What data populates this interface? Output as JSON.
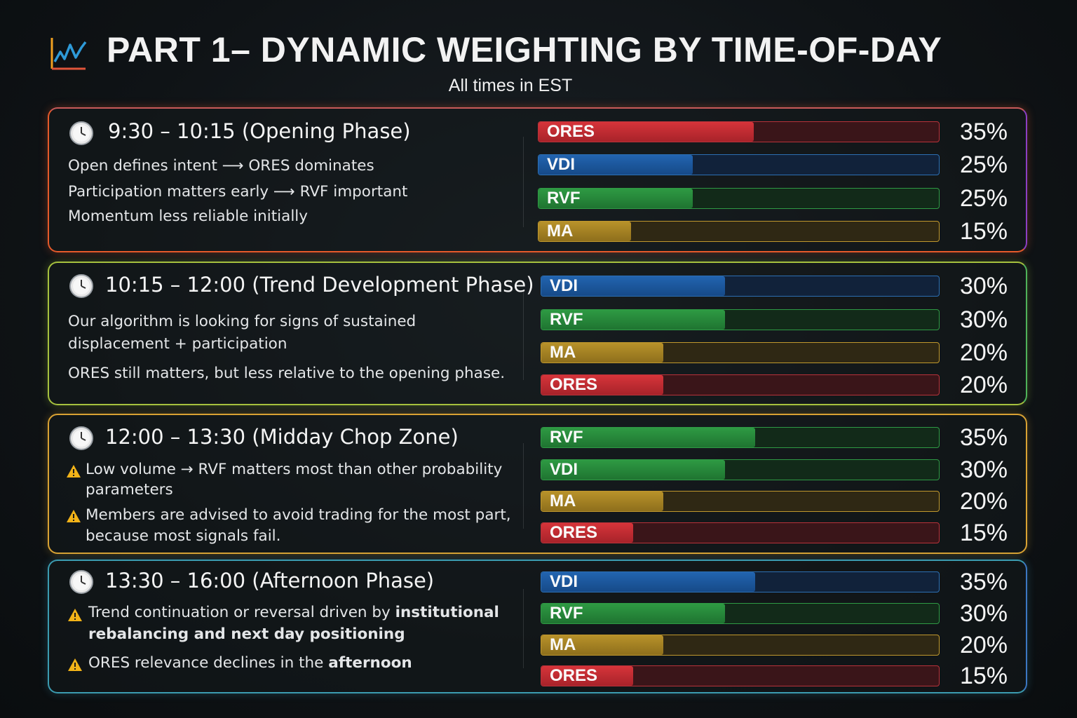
{
  "header": {
    "title": "PART 1– DYNAMIC WEIGHTING BY TIME-OF-DAY",
    "subtitle": "All times in EST"
  },
  "phases": [
    {
      "title": "9:30 – 10:15 (Opening Phase)",
      "lines": [
        "Open defines intent ⟶ ORES dominates",
        "Participation matters early ⟶ RVF important",
        "Momentum less reliable initially"
      ],
      "weights": [
        {
          "label": "ORES",
          "value": 35,
          "pct": "35%",
          "color": "red"
        },
        {
          "label": "VDI",
          "value": 25,
          "pct": "25%",
          "color": "blue"
        },
        {
          "label": "RVF",
          "value": 25,
          "pct": "25%",
          "color": "green"
        },
        {
          "label": "MA",
          "value": 15,
          "pct": "15%",
          "color": "gold"
        }
      ]
    },
    {
      "title": "10:15 – 12:00 (Trend Development Phase)",
      "lines": [
        "Our algorithm is looking for signs of sustained",
        "displacement + participation",
        "ORES still matters, but less relative to the opening phase."
      ],
      "weights": [
        {
          "label": "VDI",
          "value": 30,
          "pct": "30%",
          "color": "blue"
        },
        {
          "label": "RVF",
          "value": 30,
          "pct": "30%",
          "color": "green"
        },
        {
          "label": "MA",
          "value": 20,
          "pct": "20%",
          "color": "gold"
        },
        {
          "label": "ORES",
          "value": 20,
          "pct": "20%",
          "color": "red"
        }
      ]
    },
    {
      "title": "12:00 – 13:30 (Midday Chop Zone)",
      "lines": [
        "Low volume → RVF matters most than other probability",
        "parameters",
        "Members are advised to avoid trading for the most part,",
        "because most signals fail."
      ],
      "weights": [
        {
          "label": "RVF",
          "value": 35,
          "pct": "35%",
          "color": "green"
        },
        {
          "label": "VDI",
          "value": 30,
          "pct": "30%",
          "color": "green"
        },
        {
          "label": "MA",
          "value": 20,
          "pct": "20%",
          "color": "gold"
        },
        {
          "label": "ORES",
          "value": 15,
          "pct": "15%",
          "color": "red"
        }
      ]
    },
    {
      "title": "13:30 – 16:00 (Afternoon Phase)",
      "lines": [
        "Trend continuation or reversal driven by",
        "institutional",
        "rebalancing and next day positioning",
        "ORES relevance declines in the",
        "afternoon"
      ],
      "weights": [
        {
          "label": "VDI",
          "value": 35,
          "pct": "35%",
          "color": "blue"
        },
        {
          "label": "RVF",
          "value": 30,
          "pct": "30%",
          "color": "green"
        },
        {
          "label": "MA",
          "value": 20,
          "pct": "20%",
          "color": "gold"
        },
        {
          "label": "ORES",
          "value": 15,
          "pct": "15%",
          "color": "red"
        }
      ]
    }
  ]
}
